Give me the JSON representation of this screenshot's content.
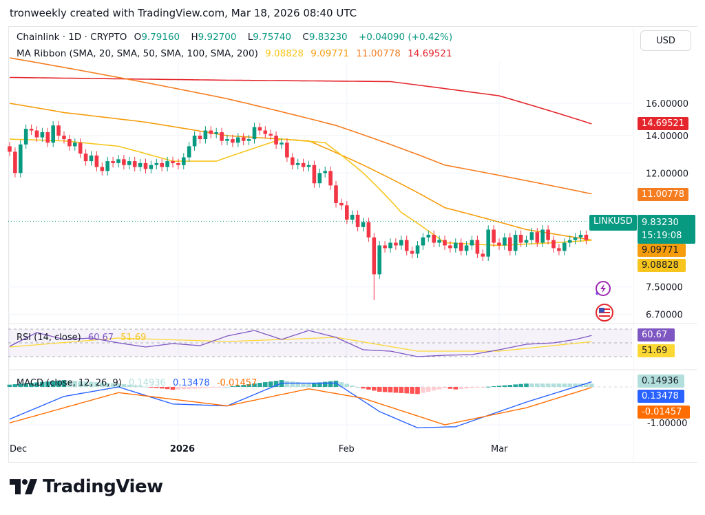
{
  "credit": "tronweekly created with TradingView.com, Mar 18, 2026 08:40 UTC",
  "currency": "USD",
  "legend": {
    "symbol": "Chainlink · 1D · CRYPTO",
    "o_label": "O",
    "o": "9.79160",
    "h_label": "H",
    "h": "9.92700",
    "l_label": "L",
    "l": "9.75740",
    "c_label": "C",
    "c": "9.83230",
    "change": "+0.04090 (+0.42%)",
    "ma_title": "MA Ribbon (SMA, 20, SMA, 50, SMA, 100, SMA, 200)",
    "ma_values": [
      "9.08828",
      "9.09771",
      "11.00778",
      "14.69521"
    ]
  },
  "rsi_legend": {
    "title": "RSI (14, close)",
    "value": "60.67",
    "ma": "51.69"
  },
  "macd_legend": {
    "title": "MACD (close, 12, 26, 9)",
    "hist": "0.14936",
    "macd": "0.13478",
    "signal": "-0.01457"
  },
  "price_tags": {
    "symbol": "LINKUSD",
    "last": "9.83230",
    "countdown": "15:19:08",
    "sma20": "9.08828",
    "sma50": "9.09771",
    "sma100": "11.00778",
    "sma200": "14.69521",
    "rsi": "60.67",
    "rsi_ma": "51.69",
    "hist": "0.14936",
    "macd": "0.13478",
    "signal": "-0.01457",
    "macd_tick": "-1.00000"
  },
  "logo": "TradingView",
  "colors": {
    "up": "#089981",
    "down": "#f23645",
    "sma20": "#f7c51e",
    "sma50": "#f59d0c",
    "sma100": "#f57c1f",
    "sma200": "#e4262c",
    "rsi": "#7e57c2",
    "rsi_ma": "#fdd835",
    "macd": "#2962ff",
    "signal": "#ff6d00"
  },
  "chart_data": [
    {
      "type": "candlestick",
      "scale": "log",
      "grid": true,
      "yticks": [
        "16.00000",
        "14.00000",
        "12.00000",
        "7.50000",
        "6.70000"
      ],
      "xticks": [
        {
          "label": "Dec",
          "index": 0
        },
        {
          "label": "2026",
          "index": 31
        },
        {
          "label": "Feb",
          "index": 62
        },
        {
          "label": "Mar",
          "index": 90
        }
      ],
      "start_date": "Dec 1",
      "end_date": "Mar 18",
      "closes": [
        13.1,
        12.0,
        13.5,
        14.4,
        14.3,
        13.9,
        14.2,
        13.6,
        14.6,
        14.0,
        13.8,
        13.4,
        13.6,
        13.0,
        12.6,
        12.9,
        12.3,
        12.1,
        12.6,
        12.5,
        12.7,
        12.4,
        12.6,
        12.3,
        12.5,
        12.2,
        12.4,
        12.5,
        12.3,
        12.6,
        12.5,
        12.4,
        12.8,
        13.4,
        14.0,
        13.8,
        14.3,
        14.1,
        14.2,
        13.7,
        13.8,
        13.6,
        13.9,
        13.7,
        13.8,
        14.5,
        14.3,
        14.1,
        14.0,
        13.5,
        13.6,
        12.8,
        12.4,
        12.5,
        12.3,
        12.4,
        11.5,
        12.0,
        12.1,
        11.4,
        10.6,
        10.5,
        9.9,
        10.1,
        9.6,
        9.8,
        9.2,
        7.9,
        8.9,
        8.8,
        9.0,
        8.9,
        9.1,
        8.7,
        8.6,
        8.9,
        9.2,
        9.3,
        9.0,
        9.1,
        8.9,
        8.8,
        9.0,
        8.7,
        8.9,
        9.1,
        8.6,
        8.5,
        9.5,
        9.0,
        8.9,
        9.2,
        8.7,
        9.3,
        9.0,
        9.1,
        9.4,
        9.0,
        9.5,
        9.1,
        8.8,
        8.7,
        9.0,
        9.1,
        9.2,
        9.3,
        9.1,
        9.8323
      ],
      "last_ohlc": {
        "open": 9.7916,
        "high": 9.927,
        "low": 9.7574,
        "close": 9.8323
      },
      "feb6_low": 7.1,
      "series": [
        {
          "name": "SMA 200",
          "points": [
            [
              0,
              17.8
            ],
            [
              40,
              17.6
            ],
            [
              70,
              17.5
            ],
            [
              90,
              16.5
            ],
            [
              107,
              14.69521
            ]
          ]
        },
        {
          "name": "SMA 100",
          "points": [
            [
              0,
              19.3
            ],
            [
              20,
              17.8
            ],
            [
              40,
              16.3
            ],
            [
              60,
              14.6
            ],
            [
              80,
              12.4
            ],
            [
              107,
              11.00778
            ]
          ]
        },
        {
          "name": "SMA 50",
          "points": [
            [
              0,
              16.0
            ],
            [
              10,
              15.4
            ],
            [
              25,
              14.8
            ],
            [
              40,
              14.0
            ],
            [
              55,
              13.7
            ],
            [
              65,
              12.4
            ],
            [
              80,
              10.4
            ],
            [
              95,
              9.5
            ],
            [
              107,
              9.09771
            ]
          ]
        },
        {
          "name": "SMA 20",
          "points": [
            [
              0,
              13.8
            ],
            [
              10,
              13.7
            ],
            [
              20,
              13.4
            ],
            [
              30,
              12.6
            ],
            [
              38,
              12.6
            ],
            [
              50,
              13.8
            ],
            [
              58,
              13.6
            ],
            [
              65,
              12.0
            ],
            [
              72,
              10.2
            ],
            [
              80,
              9.0
            ],
            [
              90,
              8.9
            ],
            [
              100,
              9.0
            ],
            [
              107,
              9.08828
            ]
          ]
        }
      ]
    },
    {
      "type": "line",
      "name": "RSI",
      "ylim": [
        30,
        70
      ],
      "rsi": [
        [
          0,
          45
        ],
        [
          5,
          65
        ],
        [
          10,
          55
        ],
        [
          15,
          57
        ],
        [
          20,
          50
        ],
        [
          25,
          44
        ],
        [
          30,
          49
        ],
        [
          35,
          46
        ],
        [
          40,
          60
        ],
        [
          45,
          68
        ],
        [
          50,
          55
        ],
        [
          55,
          68
        ],
        [
          60,
          58
        ],
        [
          65,
          40
        ],
        [
          70,
          38
        ],
        [
          75,
          30
        ],
        [
          80,
          32
        ],
        [
          85,
          33
        ],
        [
          90,
          40
        ],
        [
          95,
          48
        ],
        [
          100,
          50
        ],
        [
          104,
          55
        ],
        [
          107,
          60.67
        ]
      ],
      "rsi_ma": [
        [
          0,
          44
        ],
        [
          20,
          57
        ],
        [
          40,
          52
        ],
        [
          60,
          58
        ],
        [
          75,
          38
        ],
        [
          90,
          38
        ],
        [
          107,
          51.69
        ]
      ]
    },
    {
      "type": "line+bar",
      "name": "MACD",
      "macd": [
        [
          0,
          -0.85
        ],
        [
          10,
          -0.25
        ],
        [
          20,
          0.0
        ],
        [
          30,
          -0.45
        ],
        [
          40,
          -0.5
        ],
        [
          50,
          0.1
        ],
        [
          60,
          0.1
        ],
        [
          68,
          -0.65
        ],
        [
          75,
          -1.08
        ],
        [
          82,
          -1.05
        ],
        [
          95,
          -0.4
        ],
        [
          107,
          0.13478
        ]
      ],
      "signal": [
        [
          0,
          -0.95
        ],
        [
          20,
          -0.15
        ],
        [
          40,
          -0.5
        ],
        [
          55,
          -0.05
        ],
        [
          65,
          -0.3
        ],
        [
          80,
          -1.0
        ],
        [
          95,
          -0.55
        ],
        [
          107,
          -0.01457
        ]
      ]
    }
  ]
}
